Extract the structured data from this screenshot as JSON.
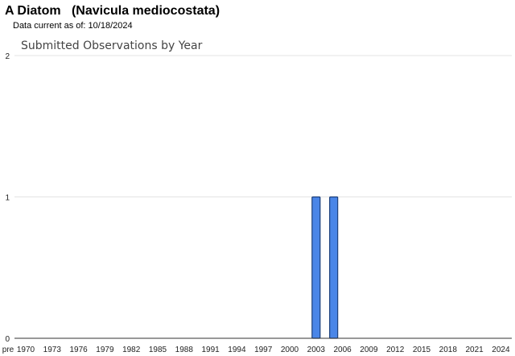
{
  "header": {
    "title": "A Diatom   (Navicula mediocostata)",
    "data_current": "Data current as of: 10/18/2024"
  },
  "chart_data": {
    "type": "bar",
    "title": "Submitted Observations by Year",
    "xlabel": "",
    "ylabel": "",
    "ylim": [
      0,
      2
    ],
    "yticks": [
      0,
      1,
      2
    ],
    "grid": true,
    "x_tick_labels": [
      "pre",
      "1970",
      "1973",
      "1976",
      "1979",
      "1982",
      "1985",
      "1988",
      "1991",
      "1994",
      "1997",
      "2000",
      "2003",
      "2006",
      "2009",
      "2012",
      "2015",
      "2018",
      "2021",
      "2024"
    ],
    "bars": [
      {
        "year": "2003",
        "value": 1
      },
      {
        "year": "2005",
        "value": 1
      }
    ],
    "bar_color": "#4a86e8",
    "bar_border_color": "#1c3f7a"
  }
}
